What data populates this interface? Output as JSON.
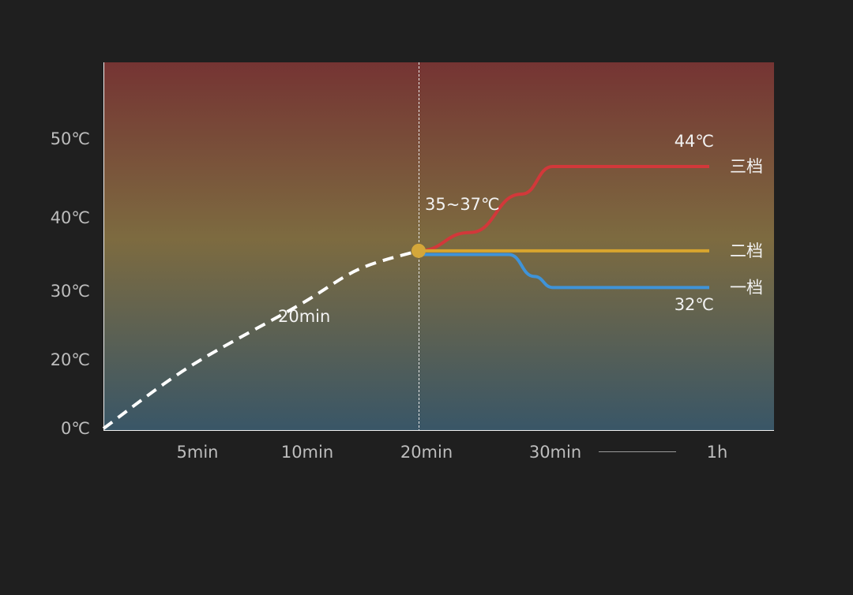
{
  "chart_data": {
    "type": "line",
    "title": "",
    "xlabel": "",
    "ylabel": "",
    "y_ticks": [
      {
        "label": "0℃",
        "value": 0
      },
      {
        "label": "20℃",
        "value": 20
      },
      {
        "label": "30℃",
        "value": 30
      },
      {
        "label": "40℃",
        "value": 40
      },
      {
        "label": "50℃",
        "value": 50
      }
    ],
    "x_ticks": [
      {
        "label": "5min",
        "value": 5
      },
      {
        "label": "10min",
        "value": 10
      },
      {
        "label": "20min",
        "value": 20
      },
      {
        "label": "30min",
        "value": 30
      },
      {
        "label": "1h",
        "value": 60
      }
    ],
    "annotations": {
      "heat_time": "20min",
      "target_range": "35~37℃",
      "high_temp": "44℃",
      "low_temp": "32℃"
    },
    "series": [
      {
        "name": "",
        "style": "dashed",
        "color": "#ffffff",
        "x": [
          0,
          5,
          10,
          15,
          20
        ],
        "y": [
          0,
          18,
          28,
          33,
          35.5
        ]
      },
      {
        "name": "三档",
        "style": "solid",
        "color": "#d2383a",
        "x": [
          20,
          24,
          28,
          31,
          60
        ],
        "y": [
          35.5,
          38,
          43,
          46.5,
          46.5
        ]
      },
      {
        "name": "二档",
        "style": "solid",
        "color": "#d9a52e",
        "x": [
          20,
          60
        ],
        "y": [
          35.5,
          35.5
        ]
      },
      {
        "name": "一档",
        "style": "solid",
        "color": "#3f93d8",
        "x": [
          20,
          27,
          29,
          31,
          60
        ],
        "y": [
          35,
          35,
          32,
          30.5,
          30.5
        ]
      }
    ],
    "colors": {
      "background": "#1f1f1f",
      "gradient_top": "#753433",
      "gradient_mid": "#7d6b40",
      "gradient_bottom": "#395667"
    },
    "grid": false,
    "legend": "right"
  }
}
